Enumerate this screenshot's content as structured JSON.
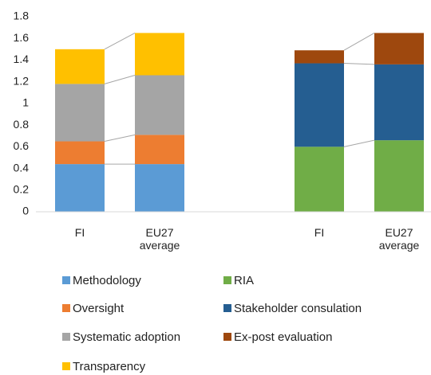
{
  "chart_data": {
    "type": "bar",
    "stacked": true,
    "categories": [
      "FI",
      "EU27 average",
      "FI",
      "EU27 average"
    ],
    "series": [
      {
        "name": "Methodology",
        "color": "#5b9bd5",
        "values": [
          0.44,
          0.44,
          null,
          null
        ]
      },
      {
        "name": "RIA",
        "color": "#70ad47",
        "values": [
          null,
          null,
          0.6,
          0.66
        ]
      },
      {
        "name": "Oversight",
        "color": "#ed7d31",
        "values": [
          0.21,
          0.27,
          null,
          null
        ]
      },
      {
        "name": "Stakeholder consulation",
        "color": "#255e91",
        "values": [
          null,
          null,
          0.77,
          0.7
        ]
      },
      {
        "name": "Systematic adoption",
        "color": "#a5a5a5",
        "values": [
          0.53,
          0.55,
          null,
          null
        ]
      },
      {
        "name": "Ex-post evaluation",
        "color": "#9e480e",
        "values": [
          null,
          null,
          0.12,
          0.29
        ]
      },
      {
        "name": "Transparency",
        "color": "#ffc000",
        "values": [
          0.32,
          0.39,
          null,
          null
        ]
      }
    ],
    "ylim": [
      0,
      1.8
    ],
    "yticks": [
      0,
      0.2,
      0.4,
      0.6,
      0.8,
      1,
      1.2,
      1.4,
      1.6,
      1.8
    ],
    "grid": false,
    "legend": "bottom"
  }
}
